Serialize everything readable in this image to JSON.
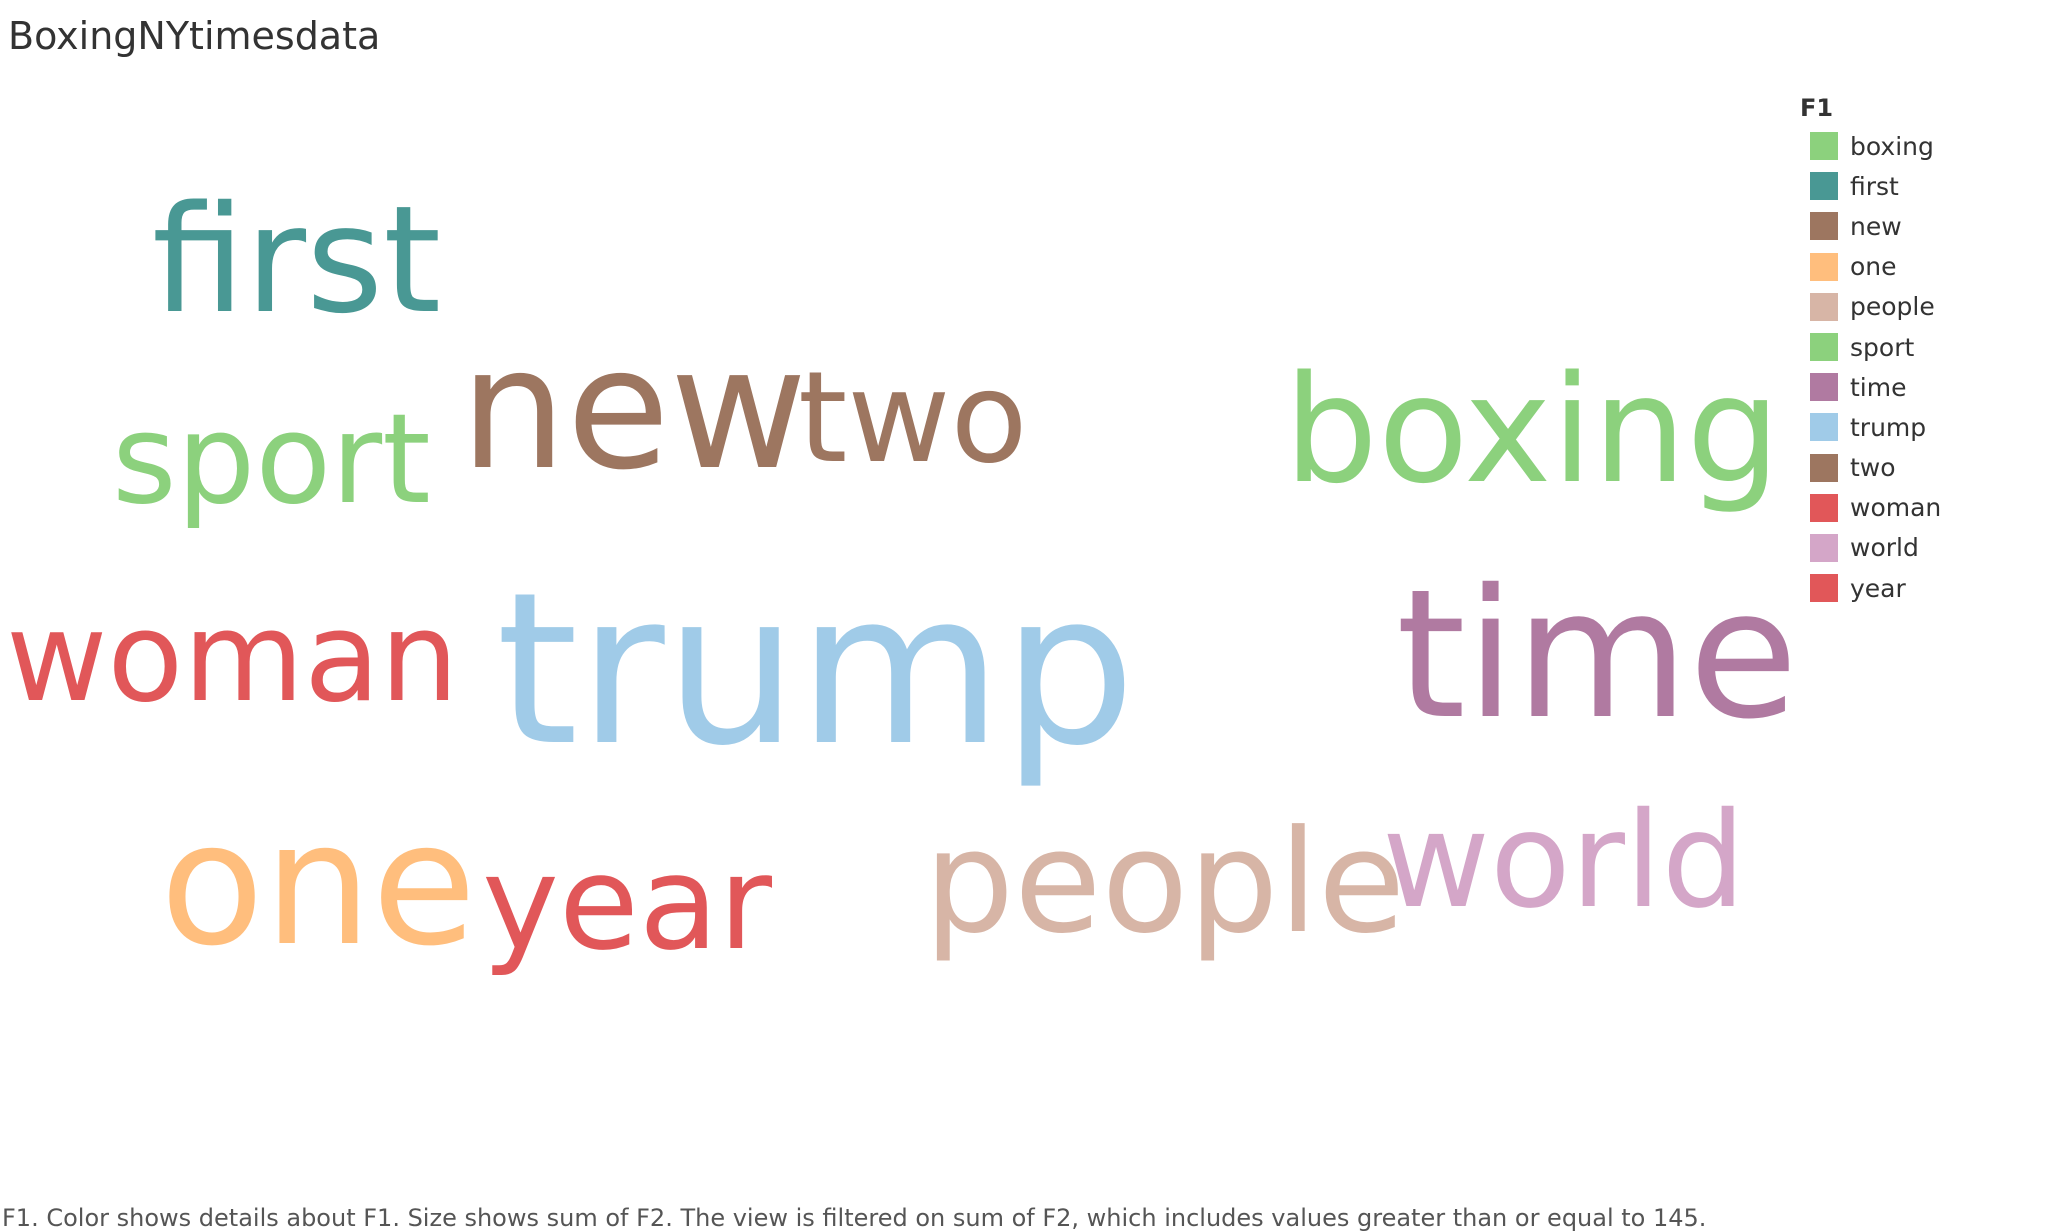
{
  "title": "BoxingNYtimesdata",
  "caption": "F1.  Color shows details about F1.  Size shows sum of F2. The view is filtered on sum of F2, which includes values greater than or equal to 145.",
  "chart_data": {
    "type": "wordcloud",
    "legend_title": "F1",
    "legend_position": "right",
    "legend": [
      {
        "label": "boxing",
        "color": "#8cd17d"
      },
      {
        "label": "first",
        "color": "#499894"
      },
      {
        "label": "new",
        "color": "#9d7660"
      },
      {
        "label": "one",
        "color": "#ffbe7d"
      },
      {
        "label": "people",
        "color": "#d7b5a6"
      },
      {
        "label": "sport",
        "color": "#8cd17d"
      },
      {
        "label": "time",
        "color": "#b07aa1"
      },
      {
        "label": "trump",
        "color": "#a0cbe8"
      },
      {
        "label": "two",
        "color": "#9d7660"
      },
      {
        "label": "woman",
        "color": "#e15759"
      },
      {
        "label": "world",
        "color": "#d4a6c8"
      },
      {
        "label": "year",
        "color": "#e15759"
      }
    ],
    "words": [
      {
        "text": "first",
        "color": "#499894"
      },
      {
        "text": "new",
        "color": "#9d7660"
      },
      {
        "text": "two",
        "color": "#9d7660"
      },
      {
        "text": "boxing",
        "color": "#8cd17d"
      },
      {
        "text": "sport",
        "color": "#8cd17d"
      },
      {
        "text": "woman",
        "color": "#e15759"
      },
      {
        "text": "trump",
        "color": "#a0cbe8"
      },
      {
        "text": "time",
        "color": "#b07aa1"
      },
      {
        "text": "one",
        "color": "#ffbe7d"
      },
      {
        "text": "year",
        "color": "#e15759"
      },
      {
        "text": "people",
        "color": "#d7b5a6"
      },
      {
        "text": "world",
        "color": "#d4a6c8"
      }
    ]
  }
}
